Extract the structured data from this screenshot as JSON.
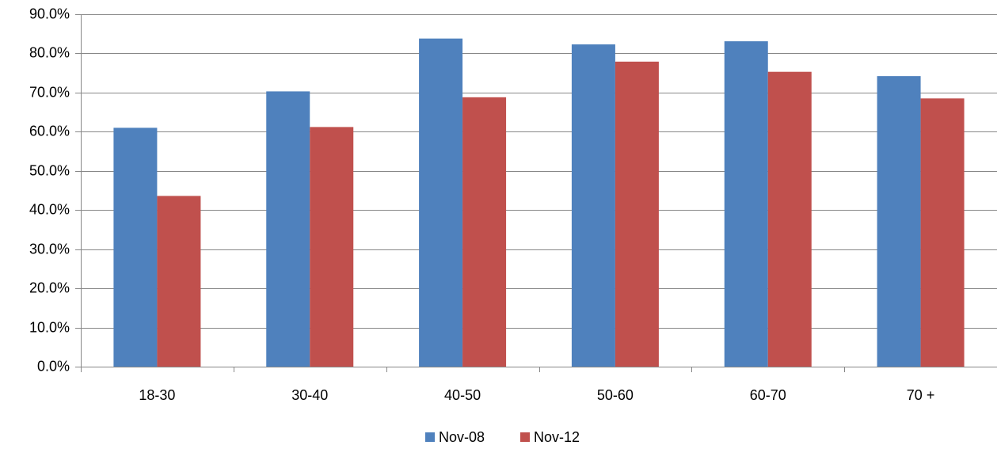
{
  "chart_data": {
    "type": "bar",
    "title": "",
    "xlabel": "",
    "ylabel": "",
    "categories": [
      "18-30",
      "30-40",
      "40-50",
      "50-60",
      "60-70",
      "70 +"
    ],
    "series": [
      {
        "name": "Nov-08",
        "color": "#4F81BD",
        "values": [
          61.0,
          70.3,
          83.8,
          82.3,
          83.1,
          74.2
        ]
      },
      {
        "name": "Nov-12",
        "color": "#C0504D",
        "values": [
          43.6,
          61.2,
          68.8,
          77.9,
          75.3,
          68.5
        ]
      }
    ],
    "ylim": [
      0,
      90
    ],
    "yticks": [
      0,
      10,
      20,
      30,
      40,
      50,
      60,
      70,
      80,
      90
    ],
    "ytick_labels": [
      "0.0%",
      "10.0%",
      "20.0%",
      "30.0%",
      "40.0%",
      "50.0%",
      "60.0%",
      "70.0%",
      "80.0%",
      "90.0%"
    ],
    "grid": true,
    "legend_position": "bottom"
  }
}
